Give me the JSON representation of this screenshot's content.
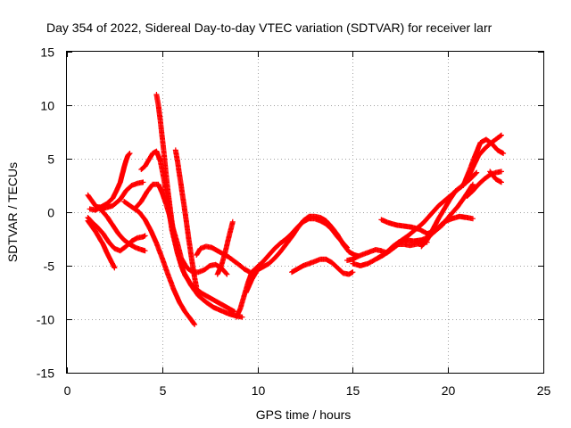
{
  "chart_data": {
    "type": "scatter",
    "title": "Day 354 of 2022, Sidereal Day-to-day VTEC variation (SDTVAR) for receiver larr",
    "xlabel": "GPS time / hours",
    "ylabel": "SDTVAR / TECUs",
    "xlim": [
      0,
      25
    ],
    "ylim": [
      -15,
      15
    ],
    "xticks": [
      "0",
      "5",
      "10",
      "15",
      "20",
      "25"
    ],
    "yticks": [
      "15",
      "10",
      "5",
      "0",
      "-5",
      "-10",
      "-15"
    ],
    "grid": true,
    "marker": "+",
    "color": "#ff0000",
    "series": [
      {
        "x": [
          1.1,
          1.3,
          1.5,
          1.7,
          1.9,
          2.1,
          2.3,
          2.5
        ],
        "y": [
          -0.8,
          -1.3,
          -1.8,
          -2.4,
          -3.0,
          -3.8,
          -4.5,
          -5.2
        ]
      },
      {
        "x": [
          1.1,
          1.3,
          1.5,
          1.8,
          2.1,
          2.4,
          2.7,
          3.0,
          3.3,
          3.6,
          3.9,
          4.1
        ],
        "y": [
          1.6,
          1.1,
          0.6,
          0.2,
          -0.4,
          -1.2,
          -2.0,
          -2.6,
          -3.0,
          -3.3,
          -3.5,
          -3.6
        ]
      },
      {
        "x": [
          1.2,
          1.5,
          1.8,
          2.1,
          2.4,
          2.6,
          2.8,
          2.9,
          3.0,
          3.1,
          3.2,
          3.3
        ],
        "y": [
          0.3,
          0.2,
          0.5,
          0.8,
          1.3,
          2.0,
          2.8,
          3.5,
          4.2,
          4.8,
          5.3,
          5.5
        ]
      },
      {
        "x": [
          1.1,
          1.3,
          1.6,
          1.9,
          2.2,
          2.5,
          2.8,
          3.1,
          3.4,
          3.7,
          4.0,
          4.1
        ],
        "y": [
          -0.5,
          -0.9,
          -1.4,
          -2.0,
          -2.8,
          -3.4,
          -3.6,
          -3.2,
          -2.7,
          -2.4,
          -2.3,
          -2.2
        ]
      },
      {
        "x": [
          1.6,
          2.0,
          2.4,
          2.8,
          3.1,
          3.4,
          3.7,
          4.0
        ],
        "y": [
          0.5,
          0.4,
          0.6,
          1.2,
          2.0,
          2.5,
          2.7,
          2.8
        ]
      },
      {
        "x": [
          3.0,
          3.4,
          3.8,
          4.1,
          4.4,
          4.7,
          5.0,
          5.3,
          5.6,
          5.9,
          6.2,
          6.5,
          6.7
        ],
        "y": [
          1.0,
          0.5,
          0.0,
          -0.7,
          -1.7,
          -2.9,
          -4.3,
          -5.8,
          -7.2,
          -8.4,
          -9.3,
          -10.0,
          -10.5
        ]
      },
      {
        "x": [
          3.6,
          3.9,
          4.2,
          4.5,
          4.8,
          5.0,
          5.2,
          5.4,
          5.6,
          5.8,
          6.0,
          6.3,
          6.6,
          6.9,
          7.2,
          7.5,
          7.8,
          8.1,
          8.4
        ],
        "y": [
          0.4,
          1.0,
          1.9,
          2.6,
          2.6,
          1.8,
          0.8,
          -0.4,
          -1.7,
          -2.9,
          -4.3,
          -5.2,
          -5.6,
          -5.6,
          -5.4,
          -5.0,
          -4.9,
          -5.2,
          -5.8
        ]
      },
      {
        "x": [
          3.9,
          4.1,
          4.3,
          4.5,
          4.7,
          4.9,
          5.1,
          5.3,
          5.5,
          5.8,
          6.1,
          6.5,
          6.9,
          7.3,
          7.7,
          8.1,
          8.5,
          8.9,
          9.2
        ],
        "y": [
          4.0,
          4.3,
          4.9,
          5.5,
          5.7,
          4.8,
          3.0,
          0.8,
          -1.6,
          -3.8,
          -5.5,
          -6.8,
          -7.8,
          -8.4,
          -8.9,
          -9.2,
          -9.5,
          -9.7,
          -9.8
        ]
      },
      {
        "x": [
          4.7,
          4.8,
          4.9,
          5.0,
          5.1,
          5.2,
          5.3,
          5.4,
          5.5,
          5.6,
          5.8,
          6.0,
          6.2,
          6.5,
          6.8,
          7.1,
          7.4,
          7.7,
          8.0,
          8.3,
          8.6,
          8.8
        ],
        "y": [
          11.0,
          10.0,
          8.6,
          7.0,
          5.4,
          3.6,
          2.0,
          0.6,
          -0.8,
          -2.0,
          -3.8,
          -5.0,
          -5.9,
          -6.7,
          -7.2,
          -7.6,
          -7.9,
          -8.2,
          -8.5,
          -8.8,
          -9.1,
          -9.3
        ]
      },
      {
        "x": [
          5.7,
          5.8,
          5.9,
          6.0,
          6.1,
          6.2,
          6.3,
          6.4,
          6.5,
          6.6,
          6.7,
          6.8
        ],
        "y": [
          5.8,
          4.8,
          3.6,
          2.4,
          1.2,
          0.0,
          -1.3,
          -2.6,
          -3.8,
          -5.0,
          -6.1,
          -7.0
        ]
      },
      {
        "x": [
          6.8,
          7.0,
          7.3,
          7.6,
          7.9,
          8.2,
          8.5,
          8.8,
          9.1,
          9.3,
          9.5,
          9.6
        ],
        "y": [
          -4.0,
          -3.4,
          -3.2,
          -3.3,
          -3.6,
          -3.9,
          -4.2,
          -4.6,
          -5.0,
          -5.3,
          -5.5,
          -5.6
        ]
      },
      {
        "x": [
          7.9,
          8.1,
          8.3,
          8.5,
          8.7
        ],
        "y": [
          -5.8,
          -5.0,
          -3.8,
          -2.3,
          -0.9
        ]
      },
      {
        "x": [
          8.9,
          9.1,
          9.3,
          9.5,
          9.7,
          10.0,
          10.3,
          10.6,
          10.9,
          11.2,
          11.5,
          11.8,
          12.1,
          12.4,
          12.7,
          13.0,
          13.3,
          13.6,
          13.9,
          14.2,
          14.5,
          14.7
        ],
        "y": [
          -9.8,
          -9.0,
          -7.8,
          -6.6,
          -5.6,
          -5.1,
          -4.6,
          -4.0,
          -3.4,
          -2.9,
          -2.5,
          -2.0,
          -1.4,
          -0.9,
          -0.6,
          -0.6,
          -0.8,
          -1.1,
          -1.6,
          -2.3,
          -2.9,
          -3.3
        ]
      },
      {
        "x": [
          9.4,
          9.7,
          10.0,
          10.3,
          10.6,
          10.9,
          11.2,
          11.5,
          11.8,
          12.1,
          12.4,
          12.7,
          13.0,
          13.3,
          13.6,
          13.9,
          14.2,
          14.5,
          14.8,
          15.1,
          15.3
        ],
        "y": [
          -7.5,
          -6.3,
          -5.4,
          -5.1,
          -4.8,
          -4.3,
          -3.7,
          -3.0,
          -2.3,
          -1.5,
          -0.8,
          -0.4,
          -0.4,
          -0.5,
          -0.8,
          -1.4,
          -2.1,
          -3.0,
          -3.7,
          -4.0,
          -4.1
        ]
      },
      {
        "x": [
          11.8,
          12.1,
          12.4,
          12.7,
          13.0,
          13.3,
          13.6,
          13.9,
          14.2,
          14.5,
          14.8,
          15.0
        ],
        "y": [
          -5.6,
          -5.3,
          -5.0,
          -4.8,
          -4.6,
          -4.4,
          -4.4,
          -4.7,
          -5.2,
          -5.7,
          -5.8,
          -5.6
        ]
      },
      {
        "x": [
          14.7,
          15.0,
          15.3,
          15.6,
          15.9,
          16.2,
          16.5,
          16.8,
          17.1,
          17.4,
          17.7,
          18.0,
          18.3,
          18.6,
          18.9
        ],
        "y": [
          -4.5,
          -4.4,
          -4.1,
          -3.9,
          -3.7,
          -3.5,
          -3.6,
          -3.8,
          -3.4,
          -3.0,
          -3.0,
          -3.1,
          -3.0,
          -2.9,
          -2.8
        ]
      },
      {
        "x": [
          15.0,
          15.4,
          15.8,
          16.2,
          16.6,
          17.0,
          17.4,
          17.8,
          18.2,
          18.6,
          19.0,
          19.4,
          19.8,
          20.2,
          20.6,
          21.0,
          21.3
        ],
        "y": [
          -4.8,
          -5.0,
          -4.8,
          -4.4,
          -4.0,
          -3.4,
          -2.8,
          -2.6,
          -2.7,
          -2.6,
          -2.3,
          -1.6,
          -0.9,
          -0.6,
          -0.4,
          -0.5,
          -0.6
        ]
      },
      {
        "x": [
          16.3,
          16.7,
          17.1,
          17.5,
          17.9,
          18.3,
          18.7,
          19.1,
          19.5,
          19.9,
          20.3,
          20.7,
          21.1,
          21.5
        ],
        "y": [
          -4.3,
          -3.9,
          -3.2,
          -2.7,
          -2.2,
          -1.6,
          -1.0,
          -0.2,
          0.6,
          1.2,
          1.8,
          2.4,
          3.0,
          3.7
        ]
      },
      {
        "x": [
          16.5,
          16.9,
          17.3,
          17.7,
          18.1,
          18.5,
          18.9,
          19.3,
          19.7,
          20.1,
          20.5,
          20.9,
          21.3
        ],
        "y": [
          -0.7,
          -1.0,
          -1.2,
          -1.3,
          -1.4,
          -1.6,
          -2.0,
          -1.8,
          -1.2,
          -0.3,
          0.5,
          1.5,
          2.6
        ]
      },
      {
        "x": [
          18.6,
          18.9,
          19.2,
          19.5,
          19.8,
          20.1,
          20.4,
          20.7,
          21.0,
          21.3,
          21.6,
          21.9,
          22.2,
          22.5,
          22.8
        ],
        "y": [
          -3.2,
          -2.6,
          -1.6,
          -0.6,
          0.3,
          1.2,
          2.0,
          2.4,
          3.0,
          4.2,
          5.3,
          5.9,
          6.4,
          6.8,
          7.2
        ]
      },
      {
        "x": [
          20.8,
          21.1,
          21.4,
          21.7,
          22.0,
          22.3,
          22.6,
          22.9
        ],
        "y": [
          2.5,
          3.8,
          5.2,
          6.5,
          6.8,
          6.4,
          5.8,
          5.5
        ]
      },
      {
        "x": [
          21.0,
          21.3,
          21.6,
          21.9,
          22.2,
          22.5,
          22.8
        ],
        "y": [
          1.5,
          2.0,
          2.6,
          3.1,
          3.5,
          3.7,
          3.8
        ]
      },
      {
        "x": [
          22.2,
          22.5,
          22.8
        ],
        "y": [
          3.8,
          3.1,
          2.8
        ]
      }
    ]
  }
}
